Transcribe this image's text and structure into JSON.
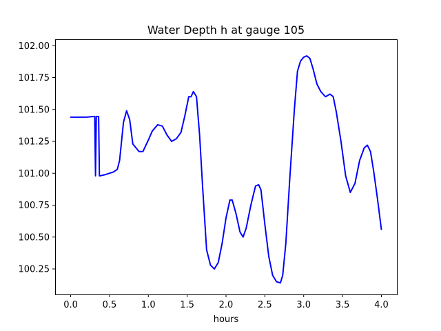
{
  "chart_data": {
    "type": "line",
    "title": "Water Depth h at gauge 105",
    "xlabel": "hours",
    "ylabel": "",
    "xlim": [
      -0.2,
      4.2
    ],
    "ylim": [
      100.05,
      102.05
    ],
    "x_ticks": [
      0.0,
      0.5,
      1.0,
      1.5,
      2.0,
      2.5,
      3.0,
      3.5,
      4.0
    ],
    "x_tick_labels": [
      "0.0",
      "0.5",
      "1.0",
      "1.5",
      "2.0",
      "2.5",
      "3.0",
      "3.5",
      "4.0"
    ],
    "y_ticks": [
      100.25,
      100.5,
      100.75,
      101.0,
      101.25,
      101.5,
      101.75,
      102.0
    ],
    "y_tick_labels": [
      "100.25",
      "100.50",
      "100.75",
      "101.00",
      "101.25",
      "101.50",
      "101.75",
      "102.00"
    ],
    "grid": false,
    "legend": "none",
    "series": [
      {
        "color": "#0000ff",
        "x": [
          0.0,
          0.1,
          0.2,
          0.3,
          0.31,
          0.32,
          0.33,
          0.34,
          0.35,
          0.36,
          0.37,
          0.38,
          0.45,
          0.55,
          0.6,
          0.63,
          0.68,
          0.72,
          0.76,
          0.8,
          0.84,
          0.88,
          0.93,
          1.0,
          1.05,
          1.12,
          1.18,
          1.24,
          1.3,
          1.36,
          1.42,
          1.47,
          1.52,
          1.55,
          1.58,
          1.62,
          1.66,
          1.7,
          1.75,
          1.8,
          1.85,
          1.9,
          1.95,
          2.0,
          2.05,
          2.08,
          2.13,
          2.18,
          2.22,
          2.26,
          2.32,
          2.38,
          2.42,
          2.45,
          2.5,
          2.55,
          2.6,
          2.65,
          2.7,
          2.73,
          2.77,
          2.82,
          2.88,
          2.92,
          2.96,
          3.0,
          3.04,
          3.08,
          3.12,
          3.17,
          3.22,
          3.28,
          3.34,
          3.38,
          3.42,
          3.48,
          3.54,
          3.6,
          3.66,
          3.72,
          3.78,
          3.82,
          3.86,
          3.9,
          3.95,
          4.0
        ],
        "y": [
          101.44,
          101.44,
          101.44,
          101.445,
          101.445,
          100.98,
          101.445,
          101.445,
          101.445,
          101.445,
          100.98,
          100.98,
          100.99,
          101.01,
          101.03,
          101.1,
          101.4,
          101.49,
          101.42,
          101.23,
          101.2,
          101.17,
          101.17,
          101.26,
          101.33,
          101.38,
          101.37,
          101.3,
          101.25,
          101.27,
          101.32,
          101.45,
          101.6,
          101.6,
          101.64,
          101.6,
          101.3,
          100.88,
          100.4,
          100.28,
          100.25,
          100.3,
          100.45,
          100.65,
          100.79,
          100.79,
          100.68,
          100.54,
          100.5,
          100.57,
          100.75,
          100.9,
          100.91,
          100.87,
          100.6,
          100.35,
          100.2,
          100.15,
          100.14,
          100.2,
          100.45,
          100.95,
          101.5,
          101.8,
          101.88,
          101.91,
          101.92,
          101.9,
          101.82,
          101.7,
          101.64,
          101.6,
          101.62,
          101.6,
          101.48,
          101.25,
          100.98,
          100.85,
          100.92,
          101.1,
          101.2,
          101.22,
          101.17,
          101.02,
          100.8,
          100.56
        ]
      }
    ]
  }
}
